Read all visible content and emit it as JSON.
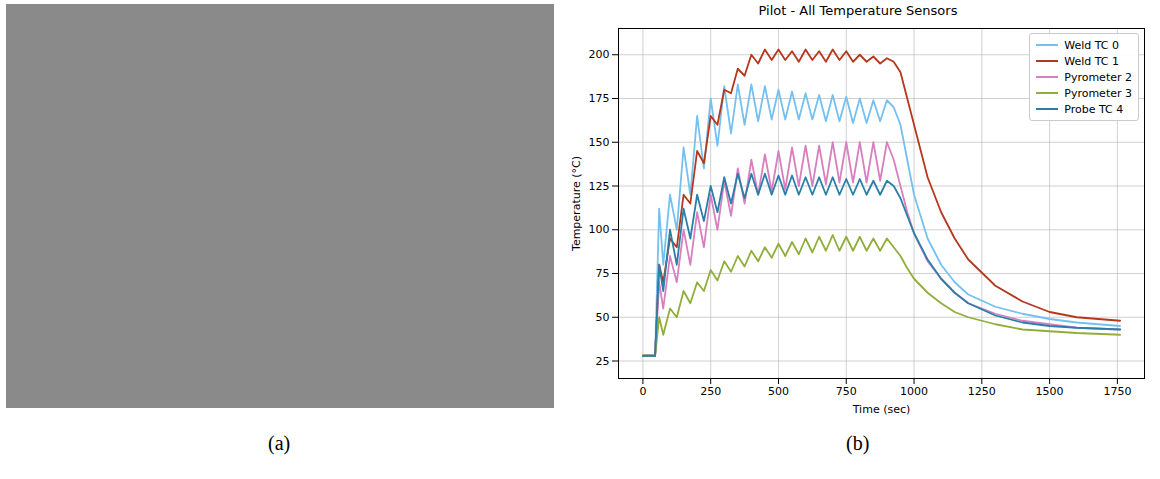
{
  "chart_data": {
    "type": "line",
    "title": "Pilot - All Temperature Sensors",
    "x_label": "Time (sec)",
    "y_label": "Temperature (°C)",
    "x": [
      0,
      45,
      60,
      75,
      100,
      125,
      150,
      175,
      200,
      225,
      250,
      275,
      300,
      325,
      350,
      375,
      400,
      425,
      450,
      475,
      500,
      525,
      550,
      575,
      600,
      625,
      650,
      675,
      700,
      725,
      750,
      775,
      800,
      825,
      850,
      875,
      900,
      925,
      950,
      975,
      1000,
      1050,
      1100,
      1150,
      1200,
      1300,
      1400,
      1500,
      1600,
      1760
    ],
    "series": [
      {
        "name": "Weld TC 0",
        "color": "#74c0f0",
        "values": [
          28,
          28,
          112,
          80,
          120,
          100,
          147,
          120,
          165,
          135,
          175,
          148,
          182,
          155,
          183,
          160,
          183,
          162,
          182,
          163,
          180,
          163,
          179,
          163,
          178,
          163,
          177,
          162,
          177,
          162,
          176,
          161,
          175,
          161,
          174,
          162,
          174,
          170,
          160,
          140,
          120,
          95,
          80,
          70,
          63,
          56,
          52,
          49,
          47,
          45
        ]
      },
      {
        "name": "Weld TC 1",
        "color": "#b5371c",
        "values": [
          28,
          28,
          80,
          70,
          95,
          90,
          120,
          115,
          145,
          138,
          165,
          160,
          180,
          178,
          192,
          188,
          200,
          195,
          203,
          197,
          203,
          197,
          202,
          196,
          203,
          197,
          202,
          196,
          203,
          197,
          202,
          196,
          200,
          196,
          199,
          195,
          198,
          196,
          190,
          175,
          160,
          130,
          110,
          95,
          83,
          68,
          59,
          53,
          50,
          48
        ]
      },
      {
        "name": "Pyrometer 2",
        "color": "#d97fbf",
        "values": [
          28,
          28,
          70,
          55,
          85,
          70,
          100,
          80,
          110,
          90,
          120,
          100,
          128,
          108,
          135,
          115,
          140,
          120,
          143,
          122,
          145,
          123,
          147,
          125,
          148,
          125,
          148,
          126,
          150,
          127,
          150,
          127,
          150,
          127,
          150,
          128,
          150,
          140,
          125,
          110,
          98,
          82,
          72,
          64,
          58,
          52,
          48,
          46,
          44,
          43
        ]
      },
      {
        "name": "Pyrometer 3",
        "color": "#8fae3a",
        "values": [
          28,
          28,
          50,
          40,
          55,
          50,
          65,
          58,
          70,
          65,
          77,
          71,
          82,
          76,
          85,
          79,
          88,
          82,
          90,
          84,
          92,
          85,
          93,
          86,
          95,
          87,
          96,
          88,
          97,
          88,
          96,
          88,
          96,
          88,
          95,
          88,
          95,
          90,
          85,
          78,
          72,
          64,
          58,
          53,
          50,
          46,
          43,
          42,
          41,
          40
        ]
      },
      {
        "name": "Probe TC 4",
        "color": "#2a7fa8",
        "values": [
          28,
          28,
          80,
          65,
          100,
          80,
          112,
          95,
          120,
          105,
          125,
          110,
          130,
          115,
          132,
          118,
          132,
          120,
          132,
          120,
          131,
          120,
          131,
          120,
          130,
          120,
          130,
          120,
          130,
          120,
          129,
          120,
          129,
          120,
          128,
          120,
          128,
          125,
          118,
          108,
          98,
          83,
          72,
          64,
          58,
          51,
          47,
          45,
          44,
          43
        ]
      }
    ],
    "xlim": [
      -90,
      1850
    ],
    "xticks": [
      0,
      250,
      500,
      750,
      1000,
      1250,
      1500,
      1750
    ],
    "ylim": [
      15,
      215
    ],
    "yticks": [
      25,
      50,
      75,
      100,
      125,
      150,
      175,
      200
    ],
    "grid": true,
    "legend": "upper right"
  },
  "panel_labels": [
    "(a)",
    "(b)"
  ]
}
